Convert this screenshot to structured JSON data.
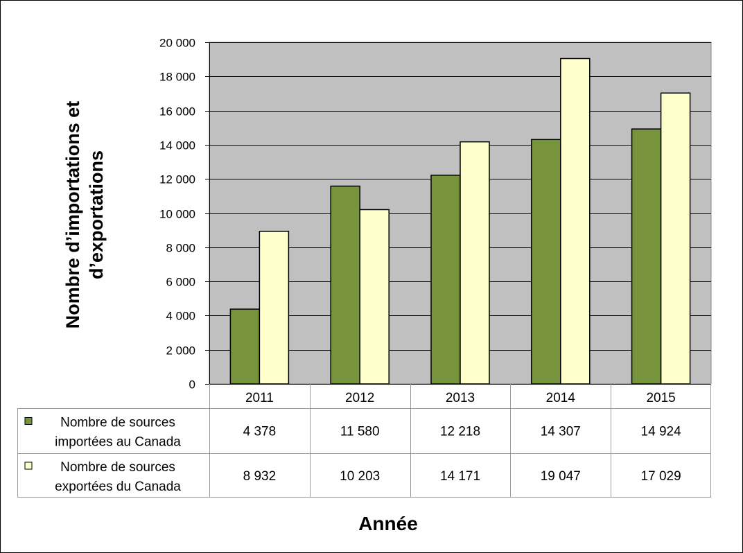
{
  "chart_data": {
    "type": "bar",
    "categories": [
      "2011",
      "2012",
      "2013",
      "2014",
      "2015"
    ],
    "series": [
      {
        "name": "Nombre de sources importées au Canada",
        "label_lines": [
          "Nombre de sources",
          "importées au Canada"
        ],
        "values": [
          4378,
          11580,
          12218,
          14307,
          14924
        ],
        "display": [
          "4 378",
          "11 580",
          "12 218",
          "14 307",
          "14 924"
        ],
        "color": "#77933C"
      },
      {
        "name": "Nombre de sources exportées du Canada",
        "label_lines": [
          "Nombre de sources",
          "exportées du Canada"
        ],
        "values": [
          8932,
          10203,
          14171,
          19047,
          17029
        ],
        "display": [
          "8 932",
          "10 203",
          "14 171",
          "19 047",
          "17 029"
        ],
        "color": "#FFFFCC"
      }
    ],
    "title": "",
    "xlabel": "Année",
    "ylabel": "Nombre d’importations et d’exportations",
    "ylim": [
      0,
      20000
    ],
    "yticks": [
      "0",
      "2 000",
      "4 000",
      "6 000",
      "8 000",
      "10 000",
      "12 000",
      "14 000",
      "16 000",
      "18 000",
      "20 000"
    ],
    "grid": true,
    "plot_background": "#C0C0C0",
    "legend": "data table below chart"
  }
}
